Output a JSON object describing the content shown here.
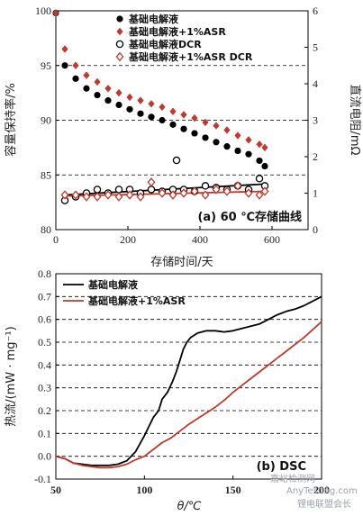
{
  "chart_data": [
    {
      "type": "scatter",
      "panel_label": "(a) 60 ℃存储曲线",
      "xlabel": "存储时间/天",
      "ylabel_left": "容量保持率/%",
      "ylabel_right": "直流电阻/mΩ",
      "xlim": [
        0,
        700
      ],
      "ylim_left": [
        80,
        100
      ],
      "ylim_right": [
        0,
        6
      ],
      "x_ticks": [
        0,
        200,
        400,
        600
      ],
      "y_left_ticks": [
        80,
        85,
        90,
        95,
        100
      ],
      "y_right_ticks": [
        0,
        1,
        2,
        3,
        4,
        5,
        6
      ],
      "legend_position": "top-right",
      "grid": "dashed horizontal",
      "series": [
        {
          "name": "基础电解液",
          "axis": "left",
          "marker": "filled-circle",
          "color": "#000000",
          "x": [
            0,
            25,
            55,
            85,
            115,
            145,
            175,
            205,
            235,
            265,
            295,
            325,
            355,
            385,
            415,
            445,
            475,
            505,
            535,
            565,
            580
          ],
          "y": [
            99.8,
            95.0,
            93.8,
            92.9,
            92.3,
            91.8,
            91.4,
            91.0,
            90.6,
            90.3,
            90.0,
            89.6,
            89.2,
            88.8,
            88.4,
            88.0,
            87.6,
            87.2,
            86.9,
            86.3,
            85.8
          ]
        },
        {
          "name": "基础电解液+1%ASR",
          "axis": "left",
          "marker": "filled-diamond",
          "color": "#c0392b",
          "x": [
            0,
            25,
            55,
            85,
            115,
            145,
            175,
            205,
            235,
            265,
            295,
            325,
            355,
            385,
            415,
            445,
            475,
            505,
            535,
            565,
            580
          ],
          "y": [
            99.8,
            96.5,
            95.0,
            94.1,
            93.5,
            92.9,
            92.5,
            92.1,
            91.8,
            91.5,
            91.2,
            90.8,
            90.5,
            90.2,
            89.8,
            89.5,
            89.1,
            88.6,
            88.2,
            87.8,
            87.5
          ]
        },
        {
          "name": "基础电解液DCR",
          "axis": "right",
          "marker": "open-circle",
          "color": "#000000",
          "x": [
            25,
            55,
            85,
            115,
            145,
            175,
            205,
            235,
            265,
            295,
            325,
            335,
            355,
            385,
            415,
            445,
            475,
            505,
            535,
            565,
            580
          ],
          "y": [
            0.8,
            0.9,
            1.0,
            1.1,
            1.0,
            1.1,
            1.1,
            1.0,
            1.1,
            1.05,
            1.1,
            1.9,
            1.1,
            1.05,
            1.2,
            1.15,
            1.1,
            1.2,
            1.1,
            1.4,
            1.2
          ]
        },
        {
          "name": "基础电解液+1%ASR DCR",
          "axis": "right",
          "marker": "open-diamond",
          "color": "#c0392b",
          "x": [
            25,
            55,
            85,
            115,
            145,
            175,
            205,
            235,
            265,
            295,
            325,
            355,
            385,
            415,
            445,
            475,
            505,
            535,
            565,
            580
          ],
          "y": [
            0.95,
            0.95,
            0.9,
            0.9,
            0.95,
            0.9,
            0.95,
            0.9,
            1.3,
            1.0,
            0.95,
            1.0,
            1.05,
            0.95,
            1.1,
            1.05,
            1.2,
            1.0,
            0.95,
            1.05
          ]
        }
      ],
      "trendlines": [
        {
          "series": "基础电解液DCR",
          "axis": "right",
          "color": "#000000",
          "x": [
            25,
            580
          ],
          "y": [
            0.95,
            1.25
          ]
        },
        {
          "series": "基础电解液+1%ASR DCR",
          "axis": "right",
          "color": "#c0392b",
          "x": [
            25,
            580
          ],
          "y": [
            0.92,
            1.05
          ]
        }
      ]
    },
    {
      "type": "line",
      "panel_label": "(b) DSC",
      "xlabel": "θ/℃",
      "ylabel": "热流/(mW · mg⁻¹)",
      "xlim": [
        50,
        200
      ],
      "ylim": [
        -0.1,
        0.8
      ],
      "x_ticks": [
        50,
        100,
        150,
        200
      ],
      "y_ticks": [
        -0.1,
        0.0,
        0.1,
        0.2,
        0.3,
        0.4,
        0.5,
        0.6,
        0.7,
        0.8
      ],
      "legend_position": "top-left",
      "grid": "dashed horizontal",
      "series": [
        {
          "name": "基础电解液",
          "color": "#000000",
          "x": [
            50,
            55,
            60,
            65,
            70,
            75,
            80,
            85,
            90,
            95,
            100,
            105,
            108,
            110,
            113,
            116,
            118,
            120,
            122,
            124,
            126,
            128,
            130,
            135,
            140,
            145,
            150,
            155,
            160,
            165,
            170,
            175,
            180,
            185,
            190,
            195,
            200
          ],
          "y": [
            0.0,
            -0.01,
            -0.03,
            -0.035,
            -0.04,
            -0.04,
            -0.04,
            -0.035,
            -0.02,
            0.02,
            0.09,
            0.17,
            0.2,
            0.25,
            0.28,
            0.33,
            0.37,
            0.42,
            0.47,
            0.5,
            0.52,
            0.53,
            0.54,
            0.55,
            0.55,
            0.545,
            0.55,
            0.56,
            0.57,
            0.58,
            0.6,
            0.62,
            0.635,
            0.645,
            0.66,
            0.68,
            0.7
          ]
        },
        {
          "name": "基础电解液+1%ASR",
          "color": "#c0392b",
          "x": [
            50,
            55,
            60,
            65,
            70,
            75,
            80,
            85,
            90,
            95,
            100,
            105,
            110,
            115,
            120,
            125,
            130,
            135,
            140,
            145,
            150,
            155,
            160,
            165,
            170,
            175,
            180,
            185,
            190,
            195,
            200
          ],
          "y": [
            0.0,
            -0.01,
            -0.03,
            -0.04,
            -0.045,
            -0.05,
            -0.05,
            -0.045,
            -0.035,
            -0.015,
            0.0,
            0.03,
            0.06,
            0.08,
            0.11,
            0.14,
            0.165,
            0.19,
            0.215,
            0.245,
            0.28,
            0.31,
            0.34,
            0.37,
            0.4,
            0.43,
            0.46,
            0.49,
            0.52,
            0.555,
            0.59
          ]
        }
      ]
    }
  ],
  "watermark": "嘉峪检测网",
  "watermark_sub": "AnyTesting.com",
  "credit": "锂电联盟会长"
}
